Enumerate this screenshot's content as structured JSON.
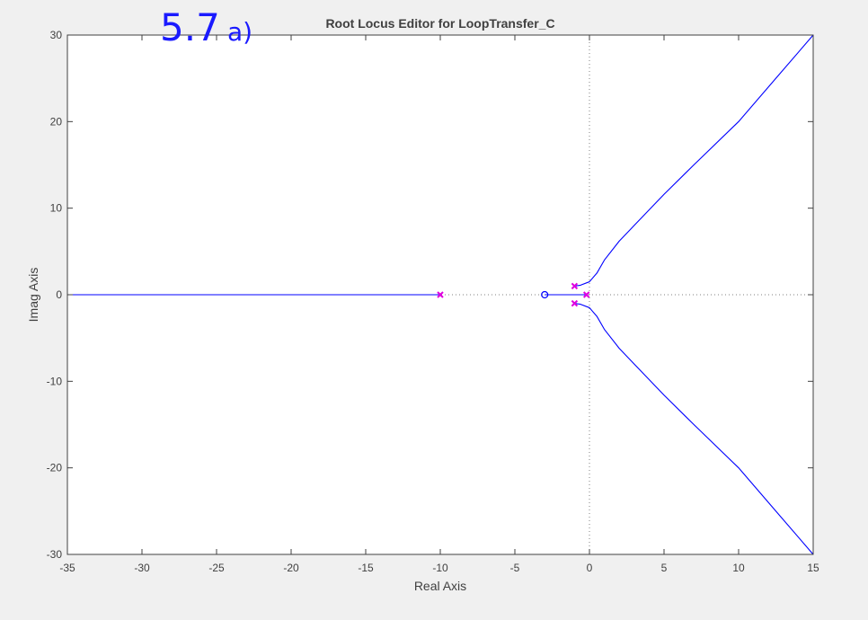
{
  "annotation": {
    "main": "5.7",
    "sub": "a)"
  },
  "chart_data": {
    "type": "line",
    "title": "Root Locus Editor for LoopTransfer_C",
    "xlabel": "Real Axis",
    "ylabel": "Imag Axis",
    "xlim": [
      -35,
      15
    ],
    "ylim": [
      -30,
      30
    ],
    "xticks": [
      -35,
      -30,
      -25,
      -20,
      -15,
      -10,
      -5,
      0,
      5,
      10,
      15
    ],
    "yticks": [
      -30,
      -20,
      -10,
      0,
      10,
      20,
      30
    ],
    "grid": false,
    "legend": "none",
    "colors": {
      "locus": "#0000ff",
      "pole": "#e000e0",
      "zero": "#0000ff",
      "axes": "#404040",
      "background": "#ffffff",
      "figure": "#f0f0f0"
    },
    "poles": [
      {
        "re": -1,
        "im": 1
      },
      {
        "re": -1,
        "im": -1
      },
      {
        "re": -10,
        "im": 0
      },
      {
        "re": -0.2,
        "im": 0
      }
    ],
    "zeros": [
      {
        "re": -3,
        "im": 0
      }
    ],
    "branches": [
      {
        "x": [
          -10,
          -35
        ],
        "y": [
          0,
          0
        ]
      },
      {
        "x": [
          -3,
          -0.2
        ],
        "y": [
          0,
          0
        ]
      },
      {
        "x": [
          -1,
          -0.6,
          0,
          0.5,
          1,
          2,
          3,
          5,
          7,
          10,
          12.5,
          15
        ],
        "y": [
          1,
          1.1,
          1.5,
          2.5,
          4,
          6.2,
          8,
          11.6,
          15,
          20,
          25,
          30
        ]
      },
      {
        "x": [
          -1,
          -0.6,
          0,
          0.5,
          1,
          2,
          3,
          5,
          7,
          10,
          12.5,
          15
        ],
        "y": [
          -1,
          -1.1,
          -1.5,
          -2.5,
          -4,
          -6.2,
          -8,
          -11.6,
          -15,
          -20,
          -25,
          -30
        ]
      }
    ]
  }
}
